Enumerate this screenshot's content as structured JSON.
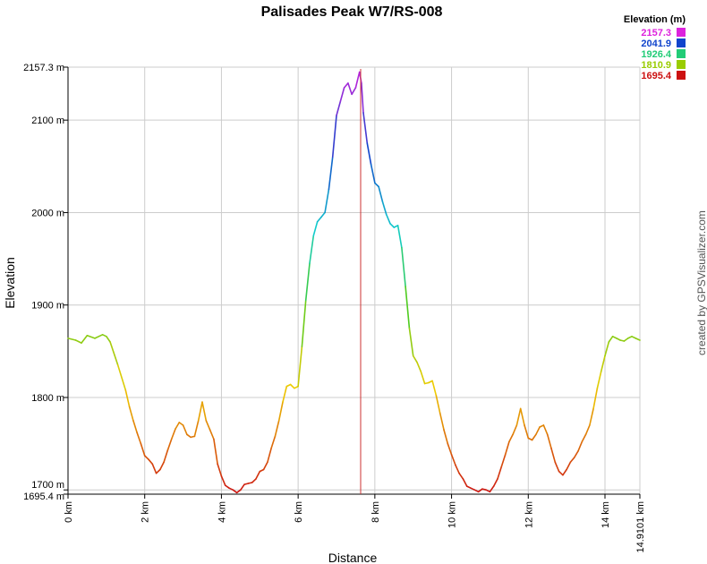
{
  "chart_data": {
    "type": "line",
    "title": "Palisades Peak W7/RS-008",
    "xlabel": "Distance",
    "ylabel": "Elevation",
    "xlim": [
      0,
      14.9101
    ],
    "ylim": [
      1695.4,
      2157.3
    ],
    "x_ticks": [
      {
        "value": 0,
        "label": "0 km"
      },
      {
        "value": 2,
        "label": "2 km"
      },
      {
        "value": 4,
        "label": "4 km"
      },
      {
        "value": 6,
        "label": "6 km"
      },
      {
        "value": 8,
        "label": "8 km"
      },
      {
        "value": 10,
        "label": "10 km"
      },
      {
        "value": 12,
        "label": "12 km"
      },
      {
        "value": 14,
        "label": "14 km"
      },
      {
        "value": 14.9101,
        "label": "14.9101 km"
      }
    ],
    "y_ticks": [
      {
        "value": 1695.4,
        "label": "1695.4 m"
      },
      {
        "value": 1700,
        "label": "1700 m"
      },
      {
        "value": 1800,
        "label": "1800 m"
      },
      {
        "value": 1900,
        "label": "1900 m"
      },
      {
        "value": 2000,
        "label": "2000 m"
      },
      {
        "value": 2100,
        "label": "2100 m"
      },
      {
        "value": 2157.3,
        "label": "2157.3 m"
      }
    ],
    "grid": true,
    "marker_x": 7.63,
    "legend": {
      "title": "Elevation (m)",
      "placement": "top-right",
      "entries": [
        {
          "label": "2157.3",
          "color": "#dd22dd"
        },
        {
          "label": "2041.9",
          "color": "#1144cc"
        },
        {
          "label": "1926.4",
          "color": "#22cc77"
        },
        {
          "label": "1810.9",
          "color": "#99cc00"
        },
        {
          "label": "1695.4",
          "color": "#cc1111"
        }
      ]
    },
    "series": [
      {
        "x": [
          0,
          0.2,
          0.35,
          0.5,
          0.7,
          0.9,
          1.0,
          1.1,
          1.3,
          1.5,
          1.6,
          1.7,
          1.8,
          1.9,
          2.0,
          2.1,
          2.2,
          2.3,
          2.4,
          2.5,
          2.6,
          2.7,
          2.8,
          2.9,
          3.0,
          3.1,
          3.2,
          3.3,
          3.4,
          3.5,
          3.6,
          3.7,
          3.8,
          3.9,
          4.0,
          4.1,
          4.2,
          4.3,
          4.4,
          4.5,
          4.6,
          4.7,
          4.8,
          4.9,
          5.0,
          5.1,
          5.2,
          5.3,
          5.4,
          5.5,
          5.6,
          5.7,
          5.8,
          5.9,
          6.0,
          6.1,
          6.2,
          6.3,
          6.4,
          6.5,
          6.6,
          6.7,
          6.8,
          6.9,
          7.0,
          7.1,
          7.2,
          7.3,
          7.4,
          7.5,
          7.6,
          7.65,
          7.7,
          7.8,
          7.9,
          8.0,
          8.1,
          8.2,
          8.3,
          8.4,
          8.5,
          8.6,
          8.7,
          8.8,
          8.9,
          9.0,
          9.1,
          9.2,
          9.3,
          9.4,
          9.5,
          9.6,
          9.7,
          9.8,
          9.9,
          10.0,
          10.1,
          10.2,
          10.3,
          10.4,
          10.5,
          10.6,
          10.7,
          10.8,
          10.9,
          11.0,
          11.1,
          11.2,
          11.3,
          11.4,
          11.5,
          11.6,
          11.7,
          11.8,
          11.9,
          12.0,
          12.1,
          12.2,
          12.3,
          12.4,
          12.5,
          12.6,
          12.7,
          12.8,
          12.9,
          13.0,
          13.1,
          13.2,
          13.3,
          13.4,
          13.5,
          13.6,
          13.7,
          13.8,
          13.9,
          14.0,
          14.1,
          14.2,
          14.3,
          14.4,
          14.5,
          14.6,
          14.7,
          14.8,
          14.9101
        ],
        "y": [
          1864,
          1862,
          1859,
          1867,
          1864,
          1868,
          1866,
          1860,
          1835,
          1808,
          1790,
          1775,
          1762,
          1750,
          1737,
          1733,
          1728,
          1718,
          1722,
          1730,
          1743,
          1755,
          1766,
          1773,
          1770,
          1760,
          1757,
          1758,
          1775,
          1795,
          1775,
          1765,
          1755,
          1728,
          1715,
          1705,
          1702,
          1700,
          1697,
          1700,
          1706,
          1707,
          1708,
          1712,
          1720,
          1722,
          1730,
          1745,
          1758,
          1775,
          1795,
          1812,
          1814,
          1810,
          1812,
          1855,
          1905,
          1945,
          1975,
          1990,
          1995,
          2000,
          2025,
          2060,
          2105,
          2120,
          2135,
          2140,
          2128,
          2135,
          2152,
          2140,
          2108,
          2075,
          2052,
          2032,
          2028,
          2012,
          1998,
          1988,
          1984,
          1986,
          1962,
          1920,
          1875,
          1845,
          1838,
          1828,
          1815,
          1816,
          1818,
          1802,
          1783,
          1765,
          1750,
          1738,
          1727,
          1718,
          1712,
          1704,
          1702,
          1700,
          1698,
          1701,
          1700,
          1698,
          1704,
          1712,
          1725,
          1738,
          1752,
          1760,
          1770,
          1788,
          1770,
          1756,
          1754,
          1760,
          1768,
          1770,
          1760,
          1745,
          1730,
          1720,
          1716,
          1722,
          1730,
          1735,
          1742,
          1752,
          1760,
          1770,
          1788,
          1810,
          1828,
          1845,
          1860,
          1866,
          1864,
          1862,
          1861,
          1864,
          1866,
          1864,
          1862
        ]
      }
    ]
  },
  "credit": "created by GPSVisualizer.com"
}
